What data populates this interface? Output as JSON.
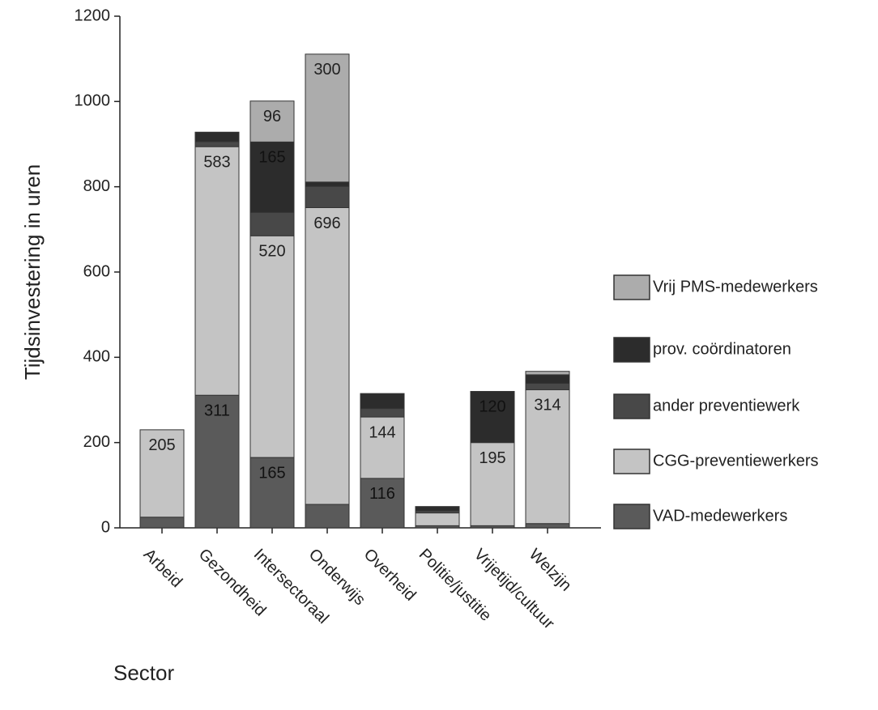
{
  "chart_data": {
    "type": "bar",
    "stacked": true,
    "y_label": "Tijdsinvestering in uren",
    "x_label": "Sector",
    "categories": [
      "Arbeid",
      "Gezondheid",
      "Intersectoraal",
      "Onderwijs",
      "Overheid",
      "Politie/justitie",
      "Vrijetijd/cultuur",
      "Welzijn"
    ],
    "series": [
      {
        "name": "VAD-medewerkers",
        "color": "#5a5a5a",
        "values": [
          25,
          311,
          165,
          55,
          116,
          5,
          5,
          10
        ],
        "value_labels": [
          null,
          "311",
          "165",
          null,
          "116",
          null,
          null,
          null
        ]
      },
      {
        "name": "CGG-preventiewerkers",
        "color": "#c4c4c4",
        "values": [
          205,
          583,
          520,
          696,
          144,
          30,
          195,
          314
        ],
        "value_labels": [
          "205",
          "583",
          "520",
          "696",
          "144",
          null,
          "195",
          "314"
        ]
      },
      {
        "name": "ander preventiewerk",
        "color": "#484848",
        "values": [
          0,
          12,
          55,
          50,
          20,
          5,
          0,
          15
        ],
        "value_labels": [
          null,
          null,
          null,
          null,
          null,
          null,
          null,
          null
        ]
      },
      {
        "name": "prov. coördinatoren",
        "color": "#2c2c2c",
        "values": [
          0,
          22,
          165,
          10,
          35,
          10,
          120,
          20
        ],
        "value_labels": [
          null,
          null,
          "165",
          null,
          null,
          null,
          "120",
          null
        ]
      },
      {
        "name": "Vrij PMS-medewerkers",
        "color": "#acacac",
        "values": [
          0,
          0,
          96,
          300,
          0,
          0,
          0,
          8
        ],
        "value_labels": [
          null,
          null,
          "96",
          "300",
          null,
          null,
          null,
          null
        ]
      }
    ],
    "ylim": [
      0,
      1200
    ],
    "yticks": [
      0,
      200,
      400,
      600,
      800,
      1000,
      1200
    ],
    "legend": "right"
  }
}
